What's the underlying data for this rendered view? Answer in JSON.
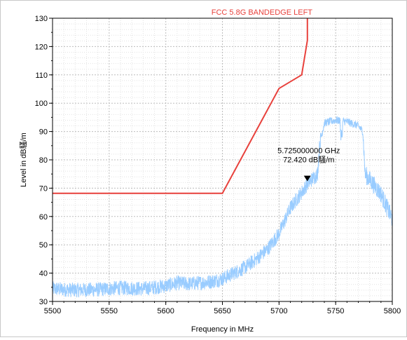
{
  "chart_data": {
    "type": "line",
    "title": "",
    "xlabel": "Frequency in MHz",
    "ylabel": "Level in dB騷/m",
    "xlim": [
      5500,
      5800
    ],
    "ylim": [
      30,
      130
    ],
    "x_ticks": [
      5500,
      5550,
      5600,
      5650,
      5700,
      5750,
      5800
    ],
    "y_ticks": [
      30,
      40,
      50,
      60,
      70,
      80,
      90,
      100,
      110,
      120,
      130
    ],
    "grid": true,
    "series": [
      {
        "name": "FCC 5.8G BANDEDGE LEFT",
        "color": "#e8413c",
        "x": [
          5500,
          5650,
          5700,
          5720,
          5725,
          5725
        ],
        "y": [
          68.2,
          68.2,
          105.2,
          110.0,
          122.2,
          130
        ]
      },
      {
        "name": "",
        "color": "#99ccff",
        "x": [
          5500,
          5520,
          5540,
          5560,
          5580,
          5600,
          5610,
          5620,
          5640,
          5650,
          5660,
          5670,
          5680,
          5690,
          5700,
          5710,
          5720,
          5725,
          5730,
          5734,
          5736,
          5740,
          5750,
          5760,
          5770,
          5774,
          5776,
          5780,
          5790,
          5800
        ],
        "y": [
          34.5,
          34.0,
          34.2,
          34.8,
          34.5,
          35.5,
          36.5,
          36.2,
          37.0,
          38.0,
          40.0,
          42.0,
          45.0,
          48.5,
          54.0,
          63.0,
          68.5,
          71.5,
          73.5,
          75.0,
          86.0,
          93.0,
          94.0,
          93.5,
          92.0,
          90.0,
          75.0,
          73.0,
          68.0,
          59.0
        ]
      }
    ],
    "annotations": [
      {
        "x": 5725,
        "y": 72.42,
        "marker": "triangle-down",
        "lines": [
          "5.725000000 GHz",
          "72.420 dB騷/m"
        ]
      }
    ]
  }
}
